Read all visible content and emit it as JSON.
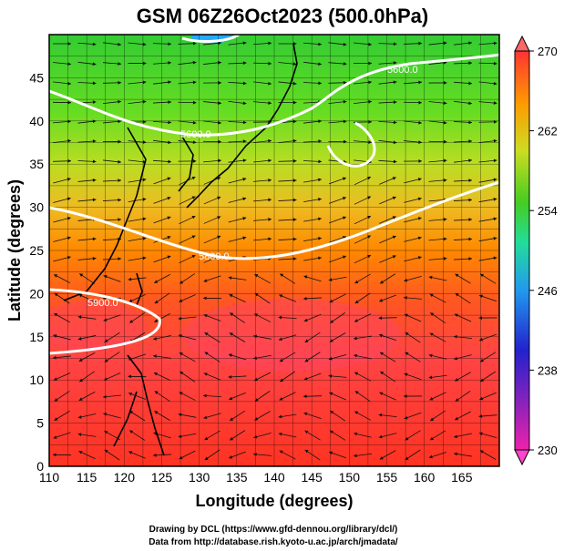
{
  "chart_data": {
    "type": "heatmap",
    "title": "GSM 06Z26Oct2023 (500.0hPa)",
    "xlabel": "Longitude (degrees)",
    "ylabel": "Latitude  (degrees)",
    "xlim": [
      110,
      170
    ],
    "ylim": [
      0,
      50
    ],
    "x_ticks": [
      "110",
      "115",
      "120",
      "125",
      "130",
      "135",
      "140",
      "145",
      "150",
      "155",
      "160",
      "165"
    ],
    "y_ticks": [
      "0",
      "5",
      "10",
      "15",
      "20",
      "25",
      "30",
      "35",
      "40",
      "45"
    ],
    "colorbar": {
      "ticks": [
        "230",
        "238",
        "246",
        "254",
        "262",
        "270"
      ],
      "range": [
        230,
        270
      ]
    },
    "contour_labels": [
      "5600.0",
      "5600.0",
      "5800.0",
      "5900.0"
    ],
    "credits": [
      "Drawing by DCL (https://www.gfd-dennou.org/library/dcl/)",
      "Data from http://database.rish.kyoto-u.ac.jp/arch/jmadata/"
    ]
  }
}
